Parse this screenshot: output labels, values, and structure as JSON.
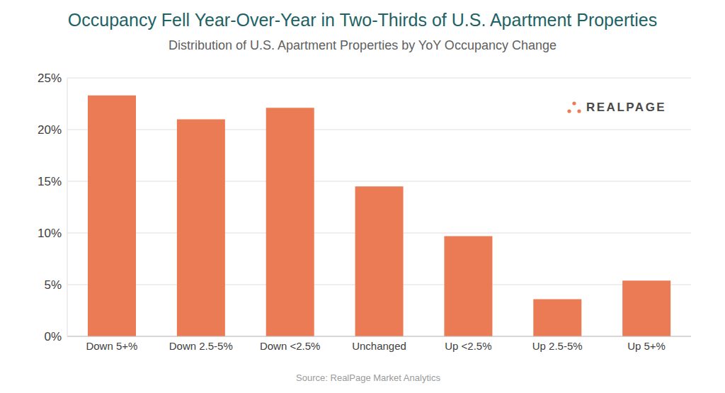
{
  "chart_data": {
    "type": "bar",
    "title": "Occupancy Fell Year-Over-Year in Two-Thirds of U.S. Apartment Properties",
    "subtitle": "Distribution of U.S. Apartment Properties by YoY Occupancy Change",
    "source": "Source: RealPage Market Analytics",
    "annotations": [
      "REALPAGE"
    ],
    "categories": [
      "Down 5+%",
      "Down 2.5-5%",
      "Down <2.5%",
      "Unchanged",
      "Up <2.5%",
      "Up 2.5-5%",
      "Up 5+%"
    ],
    "values": [
      23.3,
      21.0,
      22.1,
      14.5,
      9.7,
      3.6,
      5.4
    ],
    "color": "#eb7b55",
    "ylim": [
      0,
      25
    ],
    "yticks": [
      {
        "value": 0,
        "label": "0%"
      },
      {
        "value": 5,
        "label": "5%"
      },
      {
        "value": 10,
        "label": "10%"
      },
      {
        "value": 15,
        "label": "15%"
      },
      {
        "value": 20,
        "label": "20%"
      },
      {
        "value": 25,
        "label": "25%"
      }
    ],
    "grid": true
  }
}
